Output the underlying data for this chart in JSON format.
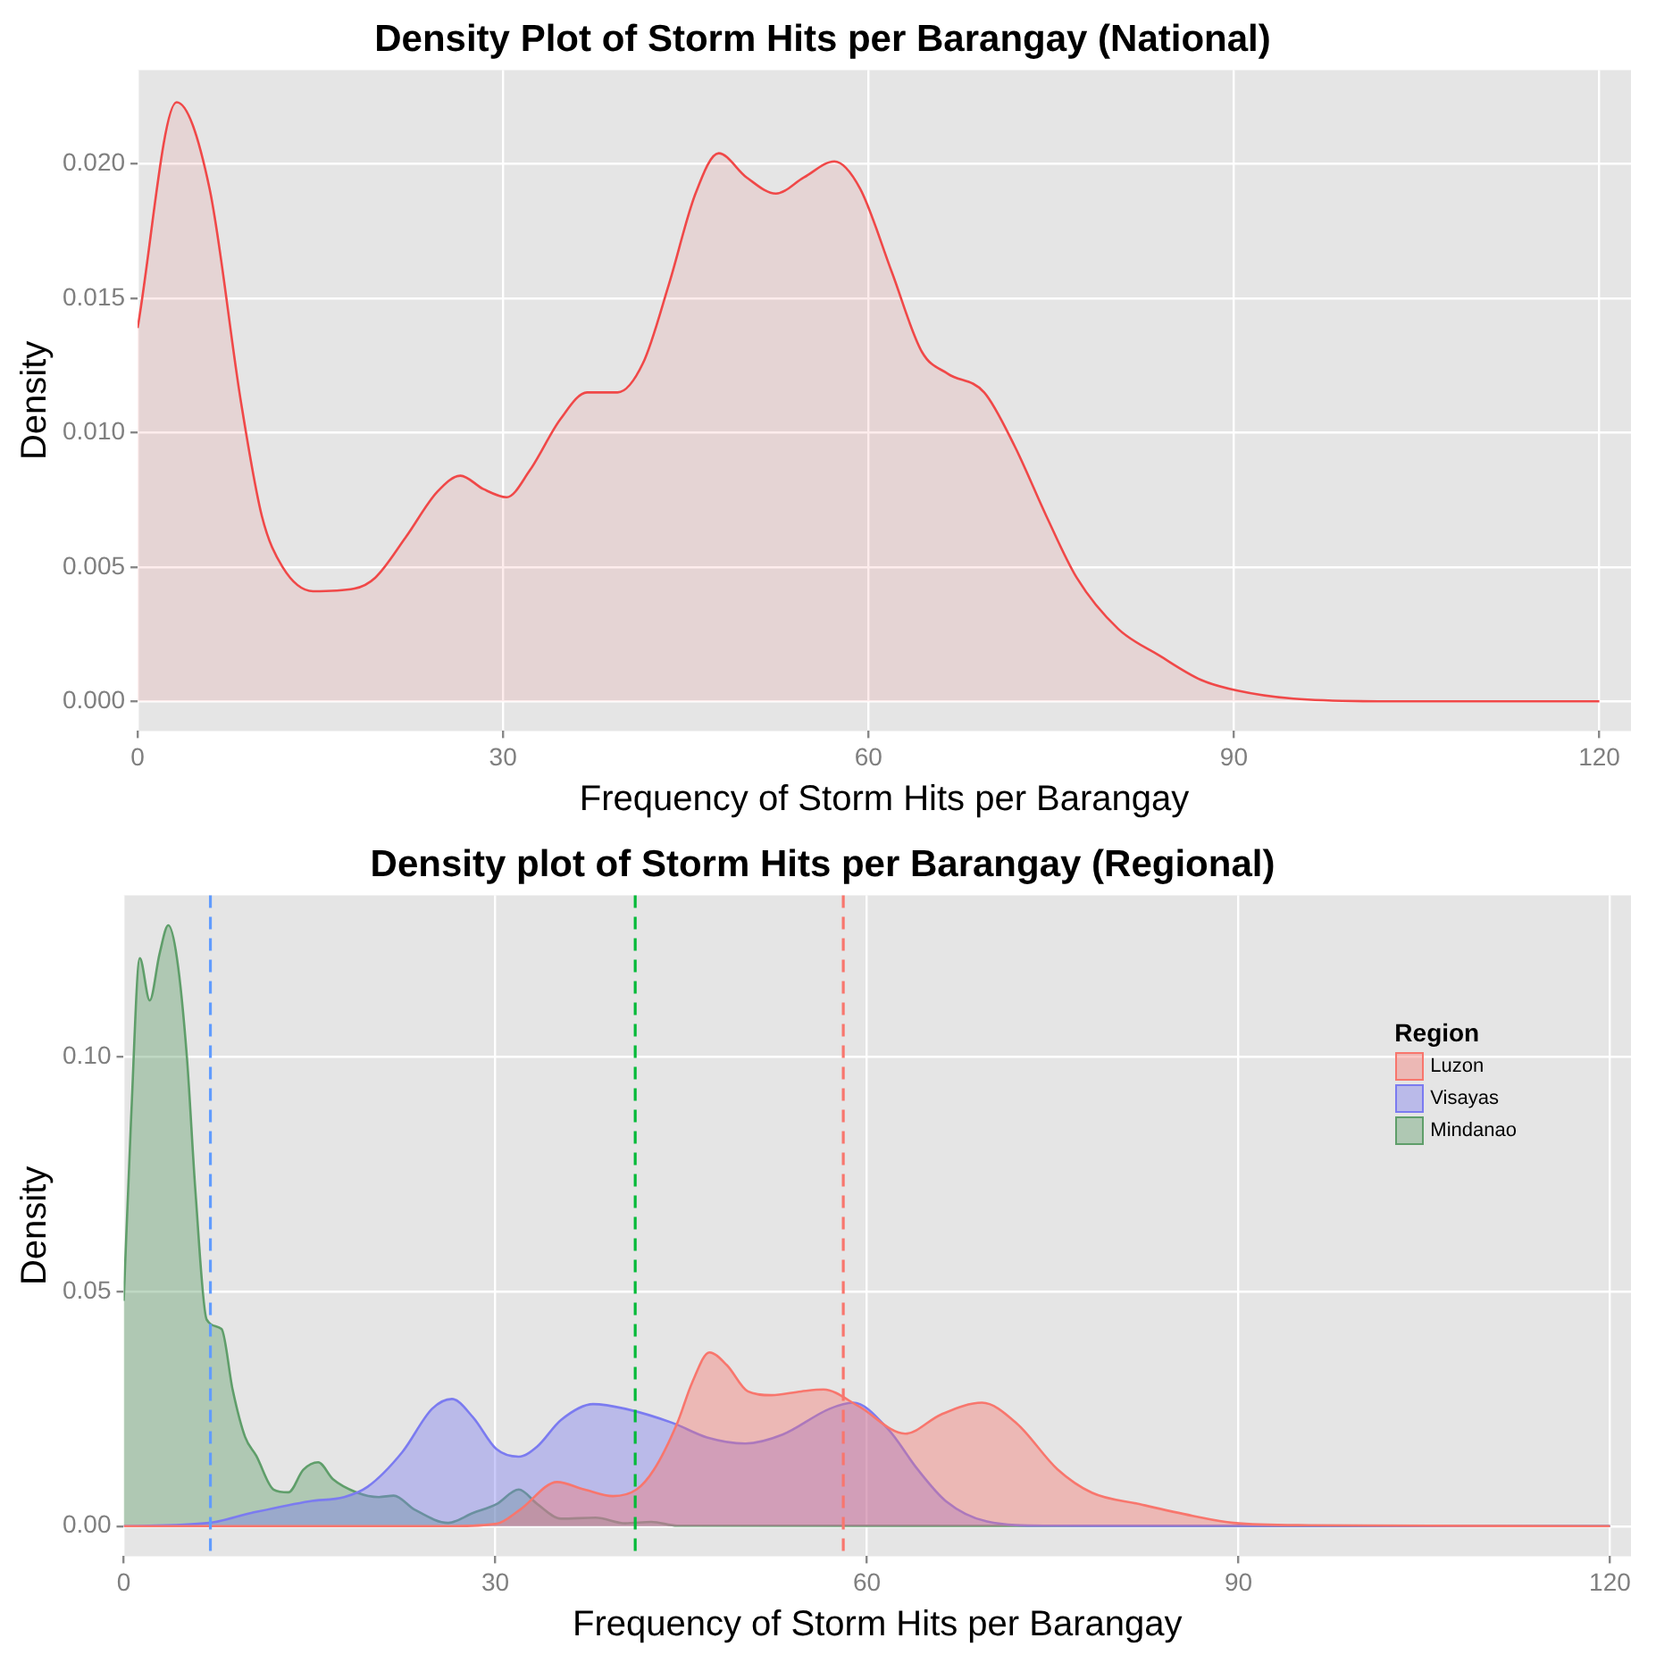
{
  "chart_data": [
    {
      "type": "area",
      "title": "Density Plot of Storm Hits per Barangay (National)",
      "xlabel": "Frequency of Storm Hits per Barangay",
      "ylabel": "Density",
      "xlim": [
        0,
        122.6
      ],
      "ylim": [
        -0.0011,
        0.0235
      ],
      "xticks": [
        0,
        30,
        60,
        90,
        120
      ],
      "yticks": [
        {
          "value": 0,
          "label": "0.000"
        },
        {
          "value": 0.005,
          "label": "0.005"
        },
        {
          "value": 0.01,
          "label": "0.010"
        },
        {
          "value": 0.015,
          "label": "0.015"
        },
        {
          "value": 0.02,
          "label": "0.020"
        }
      ],
      "grid": true,
      "series": [
        {
          "color": "#f04848",
          "x": [
            0,
            3.2,
            5.9,
            8.5,
            10.2,
            11.9,
            14.4,
            17.8,
            19.5,
            22,
            24.6,
            26.5,
            28.4,
            30.3,
            32.2,
            34.7,
            36.9,
            39.4,
            41.5,
            43.6,
            45.8,
            47.7,
            50,
            52.4,
            54.7,
            57.2,
            59.3,
            61.9,
            64.4,
            66.5,
            69.5,
            72,
            74.6,
            77.1,
            80.5,
            83.9,
            87.3,
            90.3,
            94.9,
            103.4,
            120
          ],
          "values": [
            0.0139,
            0.0223,
            0.0191,
            0.0111,
            0.0069,
            0.005,
            0.0041,
            0.0042,
            0.0046,
            0.0061,
            0.0078,
            0.0084,
            0.0079,
            0.0076,
            0.0086,
            0.0105,
            0.0115,
            0.0115,
            0.0126,
            0.0155,
            0.0189,
            0.0204,
            0.0195,
            0.0189,
            0.0195,
            0.0201,
            0.0191,
            0.016,
            0.013,
            0.0122,
            0.0115,
            0.0095,
            0.0069,
            0.0046,
            0.0027,
            0.0017,
            0.0008,
            0.0004,
            0.0001,
            0,
            0
          ]
        }
      ]
    },
    {
      "type": "area",
      "title": "Density plot of Storm Hits per Barangay (Regional)",
      "xlabel": "Frequency of Storm Hits per Barangay",
      "ylabel": "Density",
      "legend_title": "Region",
      "legend": "top right",
      "xlim": [
        0,
        121.7
      ],
      "ylim": [
        -0.0064,
        0.1344
      ],
      "xticks": [
        0,
        30,
        60,
        90,
        120
      ],
      "yticks": [
        {
          "value": 0,
          "label": "0.00"
        },
        {
          "value": 0.05,
          "label": "0.05"
        },
        {
          "value": 0.1,
          "label": "0.10"
        }
      ],
      "grid": true,
      "series": [
        {
          "name": "Luzon",
          "color": "#f8766d",
          "x": [
            0,
            26.3,
            30.1,
            32,
            35,
            37.2,
            39.5,
            41.4,
            42.8,
            44.7,
            45.9,
            47.3,
            48.7,
            50.4,
            52.3,
            54.7,
            56.5,
            59.3,
            63.1,
            66,
            69.3,
            72.1,
            75.4,
            78.2,
            82,
            86.3,
            89.6,
            95.7,
            120
          ],
          "values": [
            0,
            0,
            0.0005,
            0.0035,
            0.0094,
            0.0078,
            0.0064,
            0.0078,
            0.012,
            0.022,
            0.0306,
            0.037,
            0.0343,
            0.0287,
            0.0279,
            0.0287,
            0.0291,
            0.0256,
            0.0197,
            0.0238,
            0.0263,
            0.0219,
            0.0121,
            0.0071,
            0.0047,
            0.0022,
            0.0007,
            0.0002,
            0
          ]
        },
        {
          "name": "Visayas",
          "color": "#7b7bf0",
          "x": [
            0,
            6.9,
            10.3,
            15,
            17.8,
            19.7,
            22.5,
            24.9,
            26.5,
            28.2,
            30.1,
            31.9,
            33.4,
            35.3,
            37.9,
            40.5,
            44.3,
            47.1,
            50.2,
            53.2,
            57,
            58.9,
            61.7,
            64.1,
            66.4,
            69.7,
            74.4,
            120
          ],
          "values": [
            0,
            0.0007,
            0.0028,
            0.0053,
            0.0062,
            0.0084,
            0.0158,
            0.025,
            0.0271,
            0.0232,
            0.0164,
            0.0148,
            0.017,
            0.0226,
            0.026,
            0.025,
            0.022,
            0.0189,
            0.0176,
            0.0195,
            0.025,
            0.0263,
            0.0207,
            0.0121,
            0.0053,
            0.001,
            0.0001,
            0
          ]
        },
        {
          "name": "Mindanao",
          "color": "#5f9e6a",
          "x": [
            0,
            0.6,
            1.3,
            2.1,
            2.9,
            3.6,
            4.3,
            5.1,
            5.8,
            6.7,
            7.9,
            8.8,
            9.8,
            10.7,
            12.1,
            13.3,
            14.5,
            15.7,
            16.9,
            18.8,
            20.6,
            21.8,
            23.5,
            26.2,
            28.2,
            30.1,
            31.9,
            33.4,
            35.3,
            38.1,
            40.5,
            42.6,
            44.7,
            120
          ],
          "values": [
            0.048,
            0.087,
            0.121,
            0.112,
            0.122,
            0.128,
            0.121,
            0.1,
            0.071,
            0.044,
            0.042,
            0.029,
            0.019,
            0.015,
            0.0078,
            0.0072,
            0.012,
            0.0136,
            0.01,
            0.0072,
            0.0062,
            0.0065,
            0.0035,
            0.0007,
            0.0028,
            0.0047,
            0.0078,
            0.0047,
            0.0016,
            0.0018,
            0.0006,
            0.0009,
            0.0001,
            0
          ]
        }
      ],
      "ref_lines": [
        {
          "axis": "x",
          "value": 7,
          "color": "#619cff",
          "line_style": "dashed"
        },
        {
          "axis": "x",
          "value": 41.3,
          "color": "#00ba38",
          "line_style": "dashed"
        },
        {
          "axis": "x",
          "value": 58.1,
          "color": "#f8766d",
          "line_style": "dashed"
        }
      ]
    }
  ]
}
